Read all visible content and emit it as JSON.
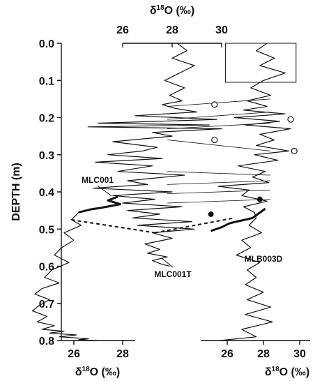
{
  "chart_data": {
    "type": "line",
    "y_axis": {
      "label": "DEPTH (m)",
      "lim": [
        0.0,
        0.8
      ],
      "ticks": [
        0.0,
        0.1,
        0.2,
        0.3,
        0.4,
        0.5,
        0.6,
        0.7,
        0.8
      ],
      "tick_labels": [
        "0.0",
        "0.1",
        "0.2",
        "0.3",
        "0.4",
        "0.5",
        "0.6",
        "0.7",
        "0.8"
      ],
      "inverted": true
    },
    "x_axes": [
      {
        "id": "left",
        "position": "bottom",
        "label": "δ18O (‰)",
        "lim": [
          24.2,
          28.8
        ],
        "ticks": [
          26,
          28
        ],
        "tick_labels": [
          "26",
          "28"
        ]
      },
      {
        "id": "middle",
        "position": "top",
        "label": "δ18O (‰)",
        "lim": [
          24.1,
          31.7
        ],
        "ticks": [
          26,
          28,
          30
        ],
        "tick_labels": [
          "26",
          "28",
          "30"
        ]
      },
      {
        "id": "right",
        "position": "bottom",
        "label": "δ18O (‰)",
        "lim": [
          23.3,
          30.3
        ],
        "ticks": [
          26,
          28,
          30
        ],
        "tick_labels": [
          "26",
          "28",
          "30"
        ]
      }
    ],
    "series": [
      {
        "name": "MLC001",
        "axis": "left",
        "x": [
          27.8,
          27.4,
          27.9,
          27.1,
          26.7,
          26.2,
          25.9,
          26.3,
          25.6,
          26.0,
          25.5,
          25.2,
          25.8,
          25.1,
          24.8,
          25.4,
          24.7,
          24.4,
          25.0,
          24.6,
          24.3,
          24.9,
          24.5,
          25.2,
          24.7,
          25.6,
          25.0,
          26.1,
          25.4,
          26.6,
          26.2,
          27.0
        ],
        "y": [
          0.413,
          0.423,
          0.433,
          0.443,
          0.447,
          0.455,
          0.475,
          0.49,
          0.51,
          0.53,
          0.55,
          0.57,
          0.59,
          0.61,
          0.63,
          0.645,
          0.66,
          0.675,
          0.69,
          0.705,
          0.72,
          0.735,
          0.75,
          0.76,
          0.77,
          0.775,
          0.78,
          0.785,
          0.79,
          0.795,
          0.798,
          0.8
        ]
      },
      {
        "name": "MLC001T",
        "axis": "middle",
        "x": [
          28.2,
          28.6,
          28.0,
          28.9,
          28.3,
          27.7,
          28.5,
          27.9,
          28.4,
          27.6,
          28.1,
          29.0,
          26.5,
          29.8,
          25.0,
          29.5,
          24.6,
          30.0,
          27.2,
          28.0,
          25.6,
          27.4,
          26.8,
          25.4,
          27.6,
          24.9,
          27.2,
          25.8,
          28.5,
          26.2,
          27.0,
          24.8,
          28.0,
          25.6,
          27.3,
          26.0,
          28.4,
          26.2,
          27.5,
          26.4,
          28.8,
          26.6,
          28.9,
          27.2,
          28.0,
          26.9,
          27.5,
          27.0,
          27.8,
          27.2,
          27.6,
          27.9
        ],
        "y": [
          0.0,
          0.02,
          0.04,
          0.06,
          0.08,
          0.1,
          0.12,
          0.14,
          0.155,
          0.165,
          0.175,
          0.185,
          0.195,
          0.205,
          0.215,
          0.22,
          0.225,
          0.23,
          0.24,
          0.25,
          0.265,
          0.28,
          0.29,
          0.3,
          0.31,
          0.32,
          0.33,
          0.345,
          0.355,
          0.37,
          0.38,
          0.39,
          0.4,
          0.41,
          0.42,
          0.43,
          0.44,
          0.45,
          0.46,
          0.47,
          0.48,
          0.49,
          0.5,
          0.51,
          0.525,
          0.54,
          0.555,
          0.565,
          0.575,
          0.585,
          0.595,
          0.6
        ]
      },
      {
        "name": "MLB003D",
        "axis": "right",
        "x": [
          28.2,
          27.6,
          28.6,
          27.8,
          29.2,
          28.0,
          27.3,
          28.4,
          27.1,
          28.2,
          26.9,
          29.2,
          26.4,
          28.9,
          27.0,
          29.5,
          27.8,
          28.6,
          27.6,
          29.4,
          27.5,
          28.8,
          26.6,
          28.1,
          27.4,
          28.3,
          25.5,
          27.2,
          26.8,
          28.2,
          26.9,
          27.5,
          27.6,
          27.2,
          27.9,
          26.8,
          27.3,
          26.5,
          27.8,
          27.1,
          27.6,
          27.0,
          28.0,
          27.1,
          28.4,
          27.0,
          28.5,
          26.8,
          27.6,
          25.6
        ],
        "y": [
          0.0,
          0.02,
          0.04,
          0.06,
          0.08,
          0.1,
          0.12,
          0.14,
          0.155,
          0.17,
          0.18,
          0.19,
          0.2,
          0.21,
          0.22,
          0.23,
          0.245,
          0.26,
          0.275,
          0.29,
          0.3,
          0.315,
          0.33,
          0.345,
          0.36,
          0.375,
          0.385,
          0.395,
          0.41,
          0.425,
          0.44,
          0.455,
          0.47,
          0.49,
          0.51,
          0.53,
          0.55,
          0.57,
          0.59,
          0.61,
          0.63,
          0.65,
          0.67,
          0.69,
          0.71,
          0.73,
          0.75,
          0.77,
          0.79,
          0.8
        ]
      }
    ],
    "bold_segments": [
      {
        "series": "MLC001",
        "from_depth": 0.413,
        "to_depth": 0.455
      },
      {
        "series": "MLC001T",
        "axis": "right",
        "x": [
          25.1,
          25.7,
          26.1,
          26.5,
          27.0,
          27.4,
          28.1
        ],
        "y": [
          0.505,
          0.495,
          0.485,
          0.48,
          0.475,
          0.47,
          0.445
        ]
      }
    ],
    "dashed_links": [
      {
        "axis": "mixed",
        "from": {
          "axis": "left",
          "x": 25.9,
          "y": 0.475
        },
        "to": {
          "axis": "middle",
          "x": 27.3,
          "y": 0.51
        }
      },
      {
        "from": {
          "axis": "middle",
          "x": 27.3,
          "y": 0.51
        },
        "to": {
          "axis": "right",
          "x": 26.4,
          "y": 0.47
        }
      }
    ],
    "tie_lines": [
      {
        "from_depth": 0.17,
        "to_depth": 0.15
      },
      {
        "from_depth": 0.205,
        "to_depth": 0.185
      },
      {
        "from_depth": 0.23,
        "to_depth": 0.215
      },
      {
        "from_depth": 0.26,
        "to_depth": 0.29
      },
      {
        "from_depth": 0.345,
        "to_depth": 0.355
      },
      {
        "from_depth": 0.38,
        "to_depth": 0.37
      },
      {
        "from_depth": 0.405,
        "to_depth": 0.395
      },
      {
        "from_depth": 0.43,
        "to_depth": 0.42
      }
    ],
    "open_circles": [
      {
        "axis": "right",
        "x": 25.3,
        "y": 0.165
      },
      {
        "axis": "right",
        "x": 29.5,
        "y": 0.205
      },
      {
        "axis": "right",
        "x": 25.3,
        "y": 0.26
      },
      {
        "axis": "right",
        "x": 29.7,
        "y": 0.29
      }
    ],
    "filled_circles": [
      {
        "axis": "right",
        "x": 27.8,
        "y": 0.42
      },
      {
        "axis": "right",
        "x": 25.1,
        "y": 0.46
      }
    ],
    "inset_box": {
      "axis": "right",
      "x_range": [
        25.9,
        29.8
      ],
      "y_range": [
        0.0,
        0.105
      ]
    },
    "annotations": [
      {
        "text": "MLC001",
        "near_series": "MLC001"
      },
      {
        "text": "MLC001T",
        "near_series": "MLC001T"
      },
      {
        "text": "MLB003D",
        "near_series": "MLB003D"
      }
    ]
  }
}
